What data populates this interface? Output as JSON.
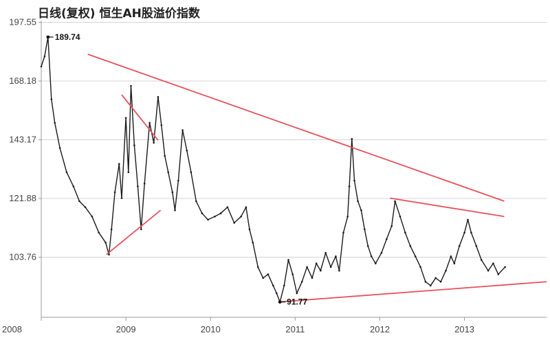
{
  "chart_data": {
    "type": "line",
    "title": "日线(复权) 恒生AH股溢价指数",
    "xlabel": "",
    "ylabel": "",
    "x_ticks": [
      "2008",
      "2009",
      "2010",
      "2011",
      "2012",
      "2013"
    ],
    "y_ticks": [
      197.55,
      168.18,
      143.17,
      121.88,
      103.76
    ],
    "xlim": [
      2008.0,
      2013.97
    ],
    "ylim": [
      88.0,
      198.5
    ],
    "log_scale_y": true,
    "grid": "horizontal",
    "colors": {
      "line": "#1a1a1a",
      "trendline": "#e8505b",
      "grid": "#d4d4d4",
      "annotation": "#111111"
    },
    "series": [
      {
        "values": [
          [
            2008.0,
            175
          ],
          [
            2008.04,
            180
          ],
          [
            2008.08,
            189.74
          ],
          [
            2008.12,
            160
          ],
          [
            2008.16,
            150
          ],
          [
            2008.22,
            140
          ],
          [
            2008.3,
            131
          ],
          [
            2008.38,
            126
          ],
          [
            2008.45,
            121
          ],
          [
            2008.52,
            119
          ],
          [
            2008.6,
            116
          ],
          [
            2008.68,
            111
          ],
          [
            2008.76,
            108
          ],
          [
            2008.8,
            104.5
          ],
          [
            2008.83,
            112
          ],
          [
            2008.87,
            124
          ],
          [
            2008.92,
            134
          ],
          [
            2008.95,
            122
          ],
          [
            2009.0,
            152
          ],
          [
            2009.03,
            131
          ],
          [
            2009.06,
            166
          ],
          [
            2009.1,
            141
          ],
          [
            2009.14,
            126
          ],
          [
            2009.18,
            112
          ],
          [
            2009.22,
            127
          ],
          [
            2009.28,
            150
          ],
          [
            2009.33,
            142
          ],
          [
            2009.38,
            161
          ],
          [
            2009.42,
            149
          ],
          [
            2009.46,
            137
          ],
          [
            2009.5,
            131
          ],
          [
            2009.55,
            124
          ],
          [
            2009.58,
            118
          ],
          [
            2009.62,
            128
          ],
          [
            2009.67,
            147
          ],
          [
            2009.72,
            139
          ],
          [
            2009.77,
            131
          ],
          [
            2009.83,
            121
          ],
          [
            2009.9,
            117
          ],
          [
            2009.97,
            115
          ],
          [
            2010.05,
            116
          ],
          [
            2010.12,
            117
          ],
          [
            2010.2,
            119
          ],
          [
            2010.28,
            114
          ],
          [
            2010.36,
            116
          ],
          [
            2010.42,
            119
          ],
          [
            2010.46,
            112
          ],
          [
            2010.5,
            108
          ],
          [
            2010.56,
            101
          ],
          [
            2010.62,
            98
          ],
          [
            2010.68,
            99
          ],
          [
            2010.74,
            96
          ],
          [
            2010.78,
            94
          ],
          [
            2010.82,
            91.77
          ],
          [
            2010.87,
            96
          ],
          [
            2010.92,
            103
          ],
          [
            2010.97,
            99
          ],
          [
            2011.02,
            94
          ],
          [
            2011.08,
            97
          ],
          [
            2011.14,
            101
          ],
          [
            2011.2,
            98
          ],
          [
            2011.25,
            102
          ],
          [
            2011.3,
            100
          ],
          [
            2011.36,
            105
          ],
          [
            2011.42,
            101
          ],
          [
            2011.48,
            104
          ],
          [
            2011.52,
            100
          ],
          [
            2011.57,
            111
          ],
          [
            2011.62,
            116
          ],
          [
            2011.64,
            126
          ],
          [
            2011.67,
            143.5
          ],
          [
            2011.7,
            128
          ],
          [
            2011.74,
            121
          ],
          [
            2011.78,
            118
          ],
          [
            2011.82,
            112
          ],
          [
            2011.86,
            107
          ],
          [
            2011.9,
            104
          ],
          [
            2011.95,
            102
          ],
          [
            2012.02,
            105
          ],
          [
            2012.08,
            109
          ],
          [
            2012.14,
            113
          ],
          [
            2012.18,
            121
          ],
          [
            2012.24,
            116
          ],
          [
            2012.3,
            111
          ],
          [
            2012.36,
            107
          ],
          [
            2012.42,
            104
          ],
          [
            2012.48,
            101
          ],
          [
            2012.54,
            97
          ],
          [
            2012.6,
            96
          ],
          [
            2012.66,
            98
          ],
          [
            2012.72,
            97
          ],
          [
            2012.78,
            100
          ],
          [
            2012.84,
            104
          ],
          [
            2012.88,
            102
          ],
          [
            2012.94,
            107
          ],
          [
            2013.0,
            111
          ],
          [
            2013.04,
            115
          ],
          [
            2013.08,
            111
          ],
          [
            2013.14,
            107
          ],
          [
            2013.2,
            103
          ],
          [
            2013.28,
            100
          ],
          [
            2013.34,
            102
          ],
          [
            2013.4,
            99
          ],
          [
            2013.48,
            101
          ]
        ]
      }
    ],
    "trendlines": [
      {
        "points": [
          [
            2008.55,
            181
          ],
          [
            2013.47,
            121
          ]
        ]
      },
      {
        "points": [
          [
            2008.95,
            162
          ],
          [
            2009.38,
            143
          ]
        ]
      },
      {
        "points": [
          [
            2008.77,
            104.5
          ],
          [
            2009.41,
            118
          ]
        ]
      },
      {
        "points": [
          [
            2012.12,
            122
          ],
          [
            2013.47,
            116
          ]
        ]
      },
      {
        "points": [
          [
            2010.82,
            91.8
          ],
          [
            2013.97,
            97
          ]
        ]
      }
    ],
    "annotations": [
      {
        "text": "189.74",
        "x": 2008.08,
        "y": 189.74
      },
      {
        "text": "91.77",
        "x": 2010.82,
        "y": 91.77
      }
    ]
  }
}
